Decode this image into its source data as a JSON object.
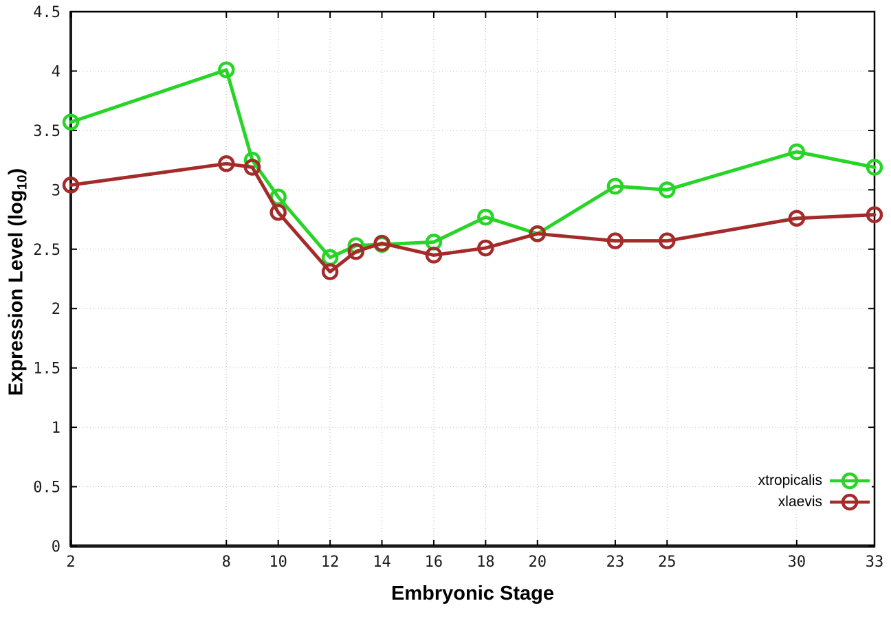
{
  "chart_data": {
    "type": "line",
    "title": "",
    "xlabel": "Embryonic Stage",
    "ylabel": "Expression Level (log10)",
    "ylabel_parts": {
      "prefix": "Expression Level (log",
      "sub": "10",
      "suffix": ")"
    },
    "xlim": [
      2,
      33
    ],
    "ylim": [
      0,
      4.5
    ],
    "grid": true,
    "legend_position": "inside-bottom-right",
    "xticks": [
      2,
      8,
      10,
      12,
      14,
      16,
      18,
      20,
      23,
      25,
      30,
      33
    ],
    "yticks": [
      0,
      0.5,
      1,
      1.5,
      2,
      2.5,
      3,
      3.5,
      4,
      4.5
    ],
    "x": [
      2,
      8,
      9,
      10,
      12,
      13,
      14,
      16,
      18,
      20,
      23,
      25,
      30,
      33
    ],
    "series": [
      {
        "name": "xtropicalis",
        "color": "#27d427",
        "values": [
          3.57,
          4.01,
          3.25,
          2.94,
          2.43,
          2.53,
          2.54,
          2.56,
          2.77,
          2.63,
          3.03,
          3.0,
          3.32,
          3.19
        ]
      },
      {
        "name": "xlaevis",
        "color": "#a52a2a",
        "values": [
          3.04,
          3.22,
          3.19,
          2.81,
          2.31,
          2.48,
          2.55,
          2.45,
          2.51,
          2.63,
          2.57,
          2.57,
          2.76,
          2.79
        ]
      }
    ]
  },
  "colors": {
    "background": "#ffffff",
    "axis": "#000000",
    "grid": "#b8b8b8",
    "tick_label": "#1a1a1a"
  }
}
